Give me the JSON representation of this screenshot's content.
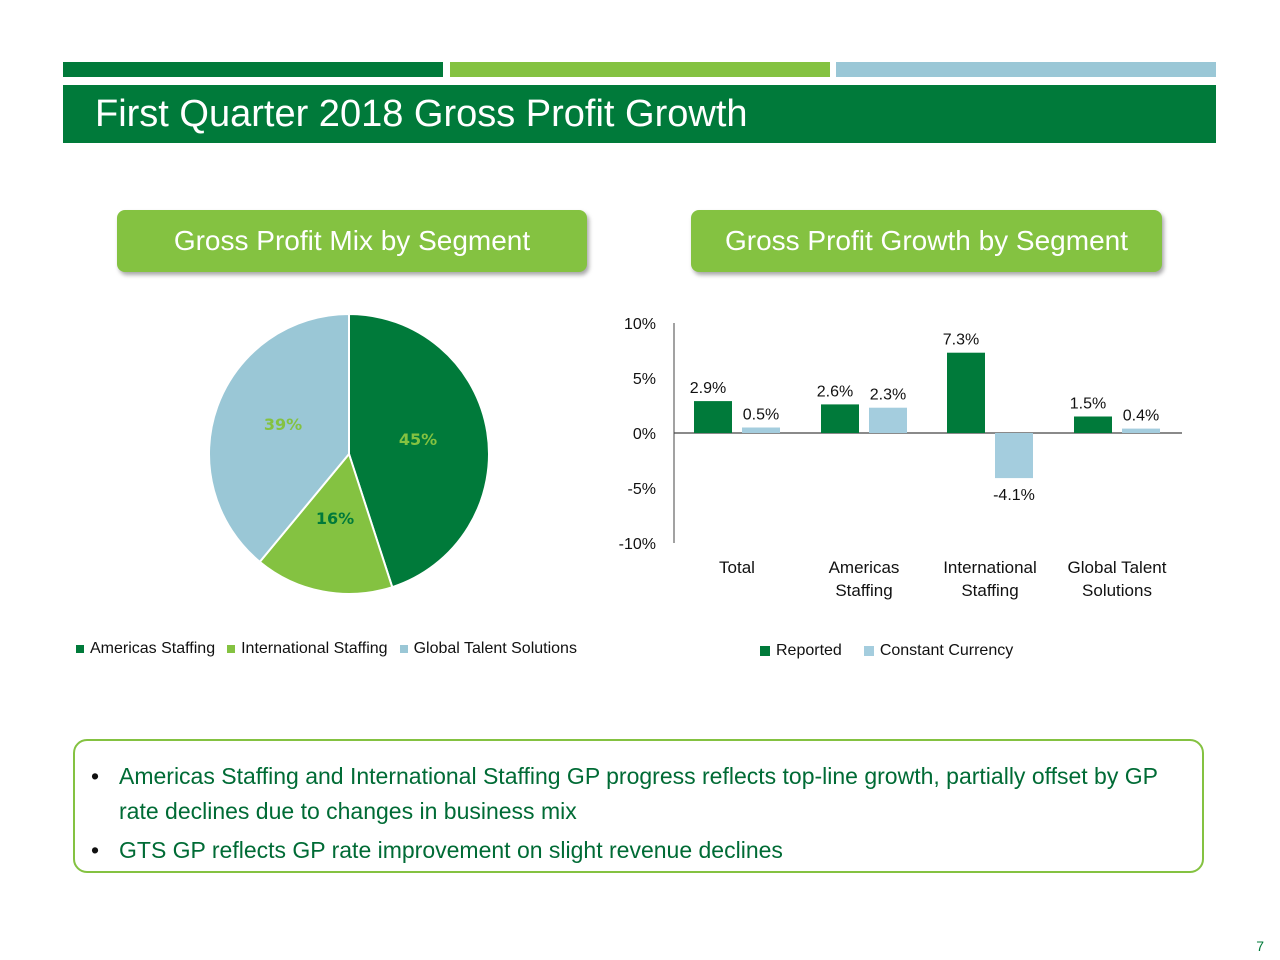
{
  "title": "First Quarter 2018 Gross Profit Growth",
  "colors": {
    "dark_green": "#007a3a",
    "light_green": "#84c241",
    "light_blue": "#9ac7d6",
    "bar_blue": "#a4cdde",
    "note_text": "#006b35"
  },
  "sections": {
    "left_header": "Gross Profit Mix by Segment",
    "right_header": "Gross Profit Growth by Segment"
  },
  "chart_data": [
    {
      "type": "pie",
      "title": "Gross Profit Mix by Segment",
      "slices": [
        {
          "name": "Americas Staffing",
          "value": 45,
          "label": "45%",
          "color": "#007a3a"
        },
        {
          "name": "International Staffing",
          "value": 16,
          "label": "16%",
          "color": "#84c241"
        },
        {
          "name": "Global Talent Solutions",
          "value": 39,
          "label": "39%",
          "color": "#9ac7d6"
        }
      ],
      "legend": [
        "Americas Staffing",
        "International Staffing",
        "Global Talent Solutions"
      ]
    },
    {
      "type": "bar",
      "title": "Gross Profit Growth by Segment",
      "categories": [
        {
          "line1": "Total",
          "line2": ""
        },
        {
          "line1": "Americas",
          "line2": "Staffing"
        },
        {
          "line1": "International",
          "line2": "Staffing"
        },
        {
          "line1": "Global Talent",
          "line2": "Solutions"
        }
      ],
      "series": [
        {
          "name": "Reported",
          "color": "#007a3a",
          "values": [
            2.9,
            2.6,
            7.3,
            1.5
          ],
          "labels": [
            "2.9%",
            "2.6%",
            "7.3%",
            "1.5%"
          ]
        },
        {
          "name": "Constant Currency",
          "color": "#a4cdde",
          "values": [
            0.5,
            2.3,
            -4.1,
            0.4
          ],
          "labels": [
            "0.5%",
            "2.3%",
            "-4.1%",
            "0.4%"
          ]
        }
      ],
      "ylim": [
        -10,
        10
      ],
      "yticks": [
        {
          "value": 10,
          "label": "10%"
        },
        {
          "value": 5,
          "label": "5%"
        },
        {
          "value": 0,
          "label": "0%"
        },
        {
          "value": -5,
          "label": "-5%"
        },
        {
          "value": -10,
          "label": "-10%"
        }
      ],
      "legend": [
        "Reported",
        "Constant Currency"
      ]
    }
  ],
  "notes": [
    "Americas Staffing and International Staffing GP progress reflects top-line growth, partially offset by GP rate declines due to changes in business mix",
    "GTS GP reflects GP rate improvement on slight revenue declines"
  ],
  "bullet_char": "•",
  "page_number": "7"
}
